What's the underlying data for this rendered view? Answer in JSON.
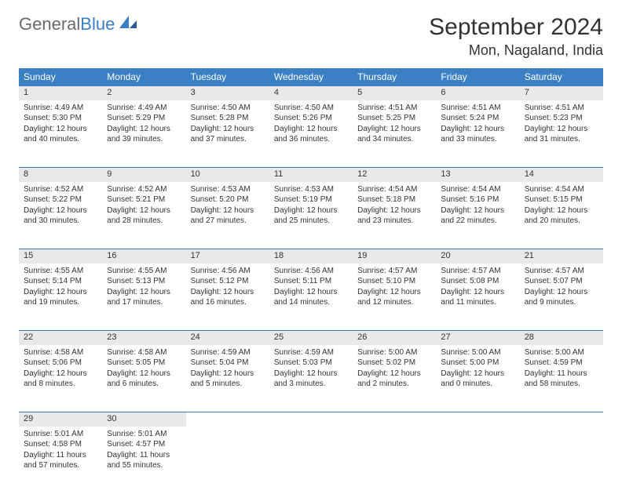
{
  "brand": {
    "part1": "General",
    "part2": "Blue"
  },
  "title": "September 2024",
  "location": "Mon, Nagaland, India",
  "colors": {
    "header_bg": "#3b7fc4",
    "header_text": "#ffffff",
    "daynum_bg": "#e9e9e9",
    "border": "#3b7fc4",
    "text": "#333333",
    "page_bg": "#ffffff",
    "logo_gray": "#6b6b6b",
    "logo_blue": "#3b7fc4"
  },
  "weekdays": [
    "Sunday",
    "Monday",
    "Tuesday",
    "Wednesday",
    "Thursday",
    "Friday",
    "Saturday"
  ],
  "weeks": [
    [
      {
        "n": "1",
        "sr": "Sunrise: 4:49 AM",
        "ss": "Sunset: 5:30 PM",
        "d1": "Daylight: 12 hours",
        "d2": "and 40 minutes."
      },
      {
        "n": "2",
        "sr": "Sunrise: 4:49 AM",
        "ss": "Sunset: 5:29 PM",
        "d1": "Daylight: 12 hours",
        "d2": "and 39 minutes."
      },
      {
        "n": "3",
        "sr": "Sunrise: 4:50 AM",
        "ss": "Sunset: 5:28 PM",
        "d1": "Daylight: 12 hours",
        "d2": "and 37 minutes."
      },
      {
        "n": "4",
        "sr": "Sunrise: 4:50 AM",
        "ss": "Sunset: 5:26 PM",
        "d1": "Daylight: 12 hours",
        "d2": "and 36 minutes."
      },
      {
        "n": "5",
        "sr": "Sunrise: 4:51 AM",
        "ss": "Sunset: 5:25 PM",
        "d1": "Daylight: 12 hours",
        "d2": "and 34 minutes."
      },
      {
        "n": "6",
        "sr": "Sunrise: 4:51 AM",
        "ss": "Sunset: 5:24 PM",
        "d1": "Daylight: 12 hours",
        "d2": "and 33 minutes."
      },
      {
        "n": "7",
        "sr": "Sunrise: 4:51 AM",
        "ss": "Sunset: 5:23 PM",
        "d1": "Daylight: 12 hours",
        "d2": "and 31 minutes."
      }
    ],
    [
      {
        "n": "8",
        "sr": "Sunrise: 4:52 AM",
        "ss": "Sunset: 5:22 PM",
        "d1": "Daylight: 12 hours",
        "d2": "and 30 minutes."
      },
      {
        "n": "9",
        "sr": "Sunrise: 4:52 AM",
        "ss": "Sunset: 5:21 PM",
        "d1": "Daylight: 12 hours",
        "d2": "and 28 minutes."
      },
      {
        "n": "10",
        "sr": "Sunrise: 4:53 AM",
        "ss": "Sunset: 5:20 PM",
        "d1": "Daylight: 12 hours",
        "d2": "and 27 minutes."
      },
      {
        "n": "11",
        "sr": "Sunrise: 4:53 AM",
        "ss": "Sunset: 5:19 PM",
        "d1": "Daylight: 12 hours",
        "d2": "and 25 minutes."
      },
      {
        "n": "12",
        "sr": "Sunrise: 4:54 AM",
        "ss": "Sunset: 5:18 PM",
        "d1": "Daylight: 12 hours",
        "d2": "and 23 minutes."
      },
      {
        "n": "13",
        "sr": "Sunrise: 4:54 AM",
        "ss": "Sunset: 5:16 PM",
        "d1": "Daylight: 12 hours",
        "d2": "and 22 minutes."
      },
      {
        "n": "14",
        "sr": "Sunrise: 4:54 AM",
        "ss": "Sunset: 5:15 PM",
        "d1": "Daylight: 12 hours",
        "d2": "and 20 minutes."
      }
    ],
    [
      {
        "n": "15",
        "sr": "Sunrise: 4:55 AM",
        "ss": "Sunset: 5:14 PM",
        "d1": "Daylight: 12 hours",
        "d2": "and 19 minutes."
      },
      {
        "n": "16",
        "sr": "Sunrise: 4:55 AM",
        "ss": "Sunset: 5:13 PM",
        "d1": "Daylight: 12 hours",
        "d2": "and 17 minutes."
      },
      {
        "n": "17",
        "sr": "Sunrise: 4:56 AM",
        "ss": "Sunset: 5:12 PM",
        "d1": "Daylight: 12 hours",
        "d2": "and 16 minutes."
      },
      {
        "n": "18",
        "sr": "Sunrise: 4:56 AM",
        "ss": "Sunset: 5:11 PM",
        "d1": "Daylight: 12 hours",
        "d2": "and 14 minutes."
      },
      {
        "n": "19",
        "sr": "Sunrise: 4:57 AM",
        "ss": "Sunset: 5:10 PM",
        "d1": "Daylight: 12 hours",
        "d2": "and 12 minutes."
      },
      {
        "n": "20",
        "sr": "Sunrise: 4:57 AM",
        "ss": "Sunset: 5:08 PM",
        "d1": "Daylight: 12 hours",
        "d2": "and 11 minutes."
      },
      {
        "n": "21",
        "sr": "Sunrise: 4:57 AM",
        "ss": "Sunset: 5:07 PM",
        "d1": "Daylight: 12 hours",
        "d2": "and 9 minutes."
      }
    ],
    [
      {
        "n": "22",
        "sr": "Sunrise: 4:58 AM",
        "ss": "Sunset: 5:06 PM",
        "d1": "Daylight: 12 hours",
        "d2": "and 8 minutes."
      },
      {
        "n": "23",
        "sr": "Sunrise: 4:58 AM",
        "ss": "Sunset: 5:05 PM",
        "d1": "Daylight: 12 hours",
        "d2": "and 6 minutes."
      },
      {
        "n": "24",
        "sr": "Sunrise: 4:59 AM",
        "ss": "Sunset: 5:04 PM",
        "d1": "Daylight: 12 hours",
        "d2": "and 5 minutes."
      },
      {
        "n": "25",
        "sr": "Sunrise: 4:59 AM",
        "ss": "Sunset: 5:03 PM",
        "d1": "Daylight: 12 hours",
        "d2": "and 3 minutes."
      },
      {
        "n": "26",
        "sr": "Sunrise: 5:00 AM",
        "ss": "Sunset: 5:02 PM",
        "d1": "Daylight: 12 hours",
        "d2": "and 2 minutes."
      },
      {
        "n": "27",
        "sr": "Sunrise: 5:00 AM",
        "ss": "Sunset: 5:00 PM",
        "d1": "Daylight: 12 hours",
        "d2": "and 0 minutes."
      },
      {
        "n": "28",
        "sr": "Sunrise: 5:00 AM",
        "ss": "Sunset: 4:59 PM",
        "d1": "Daylight: 11 hours",
        "d2": "and 58 minutes."
      }
    ],
    [
      {
        "n": "29",
        "sr": "Sunrise: 5:01 AM",
        "ss": "Sunset: 4:58 PM",
        "d1": "Daylight: 11 hours",
        "d2": "and 57 minutes."
      },
      {
        "n": "30",
        "sr": "Sunrise: 5:01 AM",
        "ss": "Sunset: 4:57 PM",
        "d1": "Daylight: 11 hours",
        "d2": "and 55 minutes."
      },
      null,
      null,
      null,
      null,
      null
    ]
  ]
}
